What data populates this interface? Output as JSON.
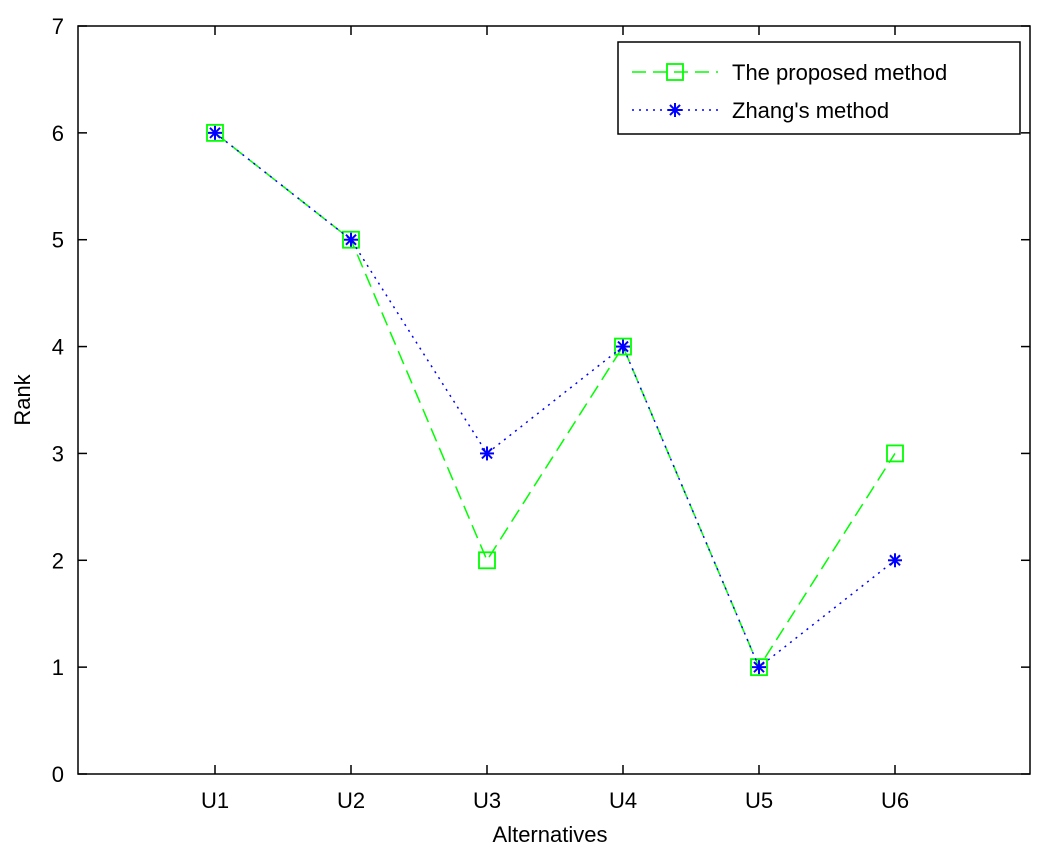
{
  "chart_data": {
    "type": "line",
    "title": "",
    "xlabel": "Alternatives",
    "ylabel": "Rank",
    "categories": [
      "U1",
      "U2",
      "U3",
      "U4",
      "U5",
      "U6"
    ],
    "ylim": [
      0,
      7
    ],
    "yticks": [
      0,
      1,
      2,
      3,
      4,
      5,
      6,
      7
    ],
    "grid": false,
    "legend_position": "top-right",
    "series": [
      {
        "name": "The proposed method",
        "values": [
          6,
          5,
          2,
          4,
          1,
          3
        ],
        "color": "#00ff00",
        "line_style": "dashed",
        "marker": "square"
      },
      {
        "name": "Zhang's method",
        "values": [
          6,
          5,
          3,
          4,
          1,
          2
        ],
        "color": "#0000ff",
        "line_style": "dotted",
        "marker": "asterisk"
      }
    ]
  }
}
